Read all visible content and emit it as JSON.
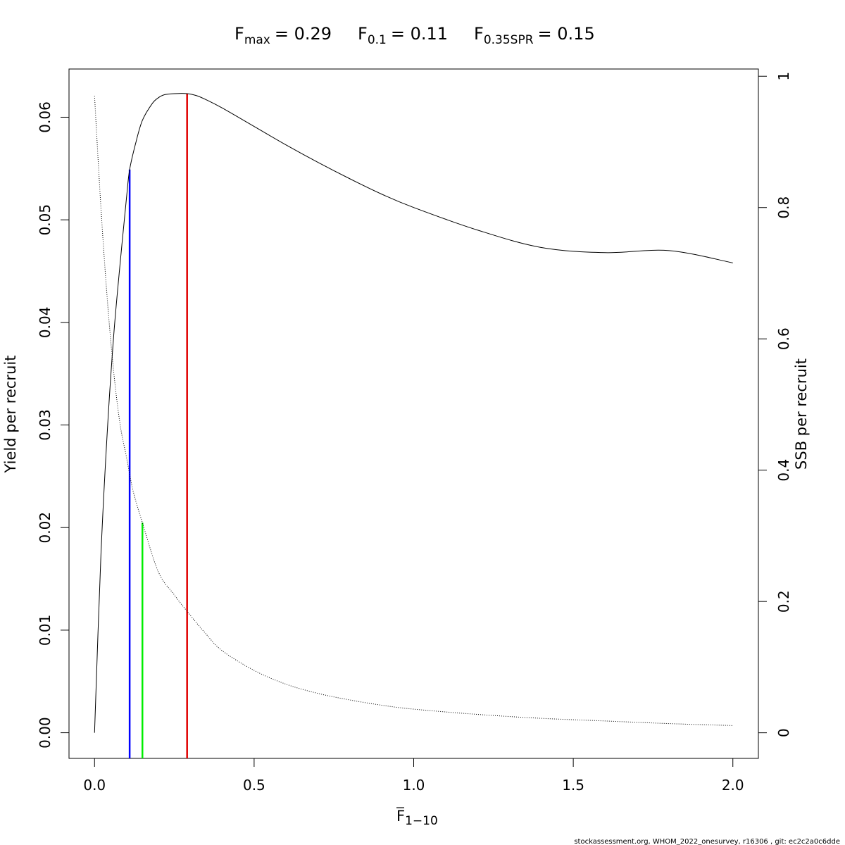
{
  "chart_data": {
    "type": "line",
    "title": {
      "fmax": {
        "base": "F",
        "sub": "max",
        "value": "= 0.29"
      },
      "f01": {
        "base": "F",
        "sub": "0.1",
        "value": "= 0.11"
      },
      "f035spr": {
        "base": "F",
        "sub": "0.35SPR",
        "value": "= 0.15"
      }
    },
    "xlabel": {
      "base": "F",
      "sub": "1−10"
    },
    "ylabel": "Yield per recruit",
    "y2label": "SSB per recruit",
    "xlim": [
      -0.08,
      2.08
    ],
    "ylim": [
      -0.0025,
      0.0647
    ],
    "y2lim": [
      -0.039,
      1.011
    ],
    "x_ticks": [
      {
        "value": 0.0,
        "label": "0.0"
      },
      {
        "value": 0.5,
        "label": "0.5"
      },
      {
        "value": 1.0,
        "label": "1.0"
      },
      {
        "value": 1.5,
        "label": "1.5"
      },
      {
        "value": 2.0,
        "label": "2.0"
      }
    ],
    "y_ticks": [
      {
        "value": 0.0,
        "label": "0.00"
      },
      {
        "value": 0.01,
        "label": "0.01"
      },
      {
        "value": 0.02,
        "label": "0.02"
      },
      {
        "value": 0.03,
        "label": "0.03"
      },
      {
        "value": 0.04,
        "label": "0.04"
      },
      {
        "value": 0.05,
        "label": "0.05"
      },
      {
        "value": 0.06,
        "label": "0.06"
      }
    ],
    "y2_ticks": [
      {
        "value": 0.0,
        "label": "0"
      },
      {
        "value": 0.2,
        "label": "0.2"
      },
      {
        "value": 0.4,
        "label": "0.4"
      },
      {
        "value": 0.6,
        "label": "0.6"
      },
      {
        "value": 0.8,
        "label": "0.8"
      },
      {
        "value": 1.0,
        "label": "1"
      }
    ],
    "series": [
      {
        "line": "solid",
        "axis": "left",
        "color": "#000000",
        "x": [
          0,
          0.02,
          0.04,
          0.06,
          0.08,
          0.1,
          0.11,
          0.13,
          0.15,
          0.18,
          0.2,
          0.22,
          0.25,
          0.29,
          0.32,
          0.35,
          0.4,
          0.5,
          0.6,
          0.7,
          0.8,
          0.9,
          1.0,
          1.2,
          1.4,
          1.6,
          1.8,
          2.0
        ],
        "y": [
          0,
          0.0173,
          0.0294,
          0.0387,
          0.0457,
          0.0521,
          0.0549,
          0.0576,
          0.0597,
          0.0613,
          0.0619,
          0.0622,
          0.0623,
          0.0623,
          0.0621,
          0.0617,
          0.0609,
          0.0591,
          0.0573,
          0.0556,
          0.054,
          0.0525,
          0.0512,
          0.049,
          0.0473,
          0.0468,
          0.047,
          0.0458
        ]
      },
      {
        "line": "dotted",
        "axis": "right",
        "color": "#000000",
        "x": [
          0,
          0.02,
          0.04,
          0.06,
          0.08,
          0.1,
          0.12,
          0.15,
          0.2,
          0.25,
          0.29,
          0.35,
          0.4,
          0.5,
          0.6,
          0.7,
          0.8,
          0.9,
          1.0,
          1.2,
          1.4,
          1.6,
          1.8,
          2.0
        ],
        "y": [
          0.97,
          0.8,
          0.66,
          0.55,
          0.47,
          0.42,
          0.37,
          0.32,
          0.245,
          0.21,
          0.185,
          0.15,
          0.125,
          0.095,
          0.074,
          0.06,
          0.05,
          0.042,
          0.036,
          0.028,
          0.022,
          0.018,
          0.014,
          0.011
        ]
      }
    ],
    "reference_lines": [
      {
        "name": "F0.1",
        "x": 0.11,
        "y_top": 0.0549,
        "axis": "left",
        "color": "#0000ff"
      },
      {
        "name": "F0.35SPR",
        "x": 0.15,
        "y_top": 0.32,
        "axis": "right",
        "color": "#00ee00"
      },
      {
        "name": "Fmax",
        "x": 0.29,
        "y_top": 0.0623,
        "axis": "left",
        "color": "#e00000"
      }
    ],
    "grid": false,
    "legend": "none"
  },
  "footer": "stockassessment.org, WHOM_2022_onesurvey, r16306 , git: ec2c2a0c6dde"
}
